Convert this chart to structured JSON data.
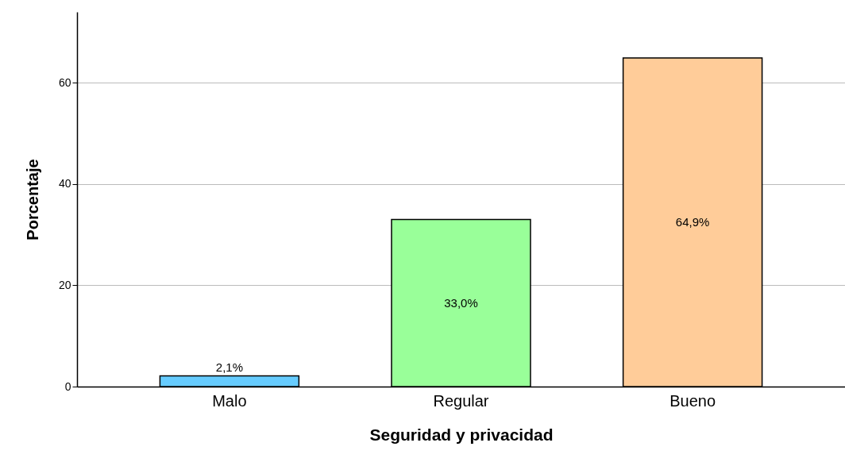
{
  "chart_data": {
    "type": "bar",
    "xlabel": "Seguridad y privacidad",
    "ylabel": "Porcentaje",
    "categories": [
      "Malo",
      "Regular",
      "Bueno"
    ],
    "values": [
      2.1,
      33.0,
      64.9
    ],
    "colors": [
      "#66ccff",
      "#99ff99",
      "#ffcc99"
    ],
    "value_labels": [
      "2,1%",
      "33,0%",
      "64,9%"
    ],
    "ylim": [
      0,
      74
    ],
    "yticks": [
      0,
      20,
      40,
      60
    ],
    "grid": "y"
  }
}
